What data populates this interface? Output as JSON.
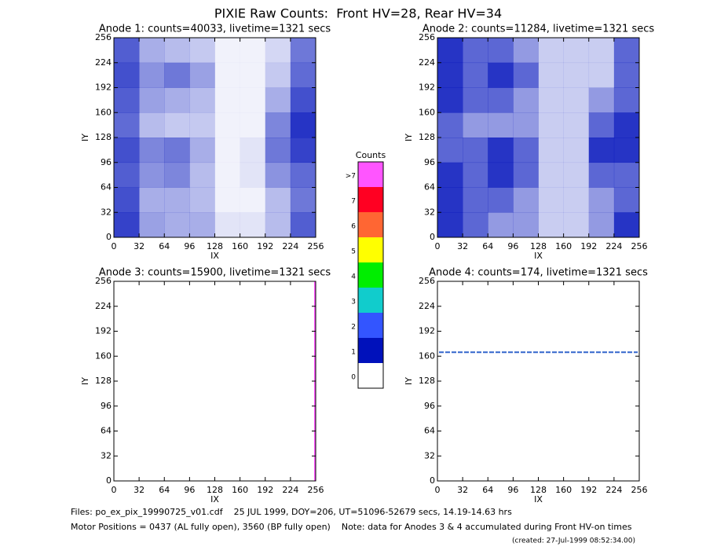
{
  "title": "PIXIE Raw Counts:  Front HV=28, Rear HV=34",
  "chart_data": [
    {
      "type": "heatmap",
      "title": "Anode 1: counts=40033, livetime=1321 secs",
      "x_label": "IX",
      "y_label": "IY",
      "xlim": [
        0,
        256
      ],
      "ylim": [
        0,
        256
      ],
      "xticks": [
        0,
        32,
        64,
        96,
        128,
        160,
        192,
        224,
        256
      ],
      "yticks": [
        0,
        32,
        64,
        96,
        128,
        160,
        192,
        224,
        256
      ],
      "color": "#0011bb",
      "values": [
        [
          1.4,
          0.7,
          0.6,
          0.6,
          0.2,
          0.2,
          0.5,
          1.2
        ],
        [
          1.3,
          0.6,
          0.6,
          0.5,
          0.1,
          0.1,
          0.5,
          1.0
        ],
        [
          1.2,
          0.8,
          0.9,
          0.5,
          0.1,
          0.2,
          0.8,
          1.1
        ],
        [
          1.3,
          0.9,
          1.0,
          0.6,
          0.1,
          0.2,
          1.0,
          1.4
        ],
        [
          1.1,
          0.5,
          0.4,
          0.4,
          0.1,
          0.1,
          0.9,
          1.5
        ],
        [
          1.2,
          0.7,
          0.6,
          0.5,
          0.1,
          0.1,
          0.6,
          1.3
        ],
        [
          1.3,
          0.8,
          1.0,
          0.7,
          0.1,
          0.1,
          0.4,
          1.1
        ],
        [
          1.2,
          0.6,
          0.5,
          0.4,
          0.1,
          0.1,
          0.3,
          1.0
        ]
      ]
    },
    {
      "type": "heatmap",
      "title": "Anode 2: counts=11284, livetime=1321 secs",
      "x_label": "IX",
      "y_label": "IY",
      "xlim": [
        0,
        256
      ],
      "ylim": [
        0,
        256
      ],
      "xticks": [
        0,
        32,
        64,
        96,
        128,
        160,
        192,
        224,
        256
      ],
      "yticks": [
        0,
        32,
        64,
        96,
        128,
        160,
        192,
        224,
        256
      ],
      "color": "#0011bb",
      "values": [
        [
          0.4,
          0.3,
          0.2,
          0.2,
          0.1,
          0.1,
          0.2,
          0.4
        ],
        [
          0.4,
          0.3,
          0.3,
          0.2,
          0.1,
          0.1,
          0.2,
          0.3
        ],
        [
          0.4,
          0.3,
          0.4,
          0.3,
          0.1,
          0.1,
          0.3,
          0.3
        ],
        [
          0.3,
          0.3,
          0.4,
          0.3,
          0.1,
          0.1,
          0.4,
          0.4
        ],
        [
          0.3,
          0.2,
          0.2,
          0.2,
          0.1,
          0.1,
          0.3,
          0.4
        ],
        [
          0.4,
          0.3,
          0.3,
          0.2,
          0.1,
          0.1,
          0.2,
          0.3
        ],
        [
          0.4,
          0.3,
          0.4,
          0.3,
          0.1,
          0.1,
          0.1,
          0.3
        ],
        [
          0.4,
          0.3,
          0.3,
          0.2,
          0.1,
          0.1,
          0.1,
          0.3
        ]
      ]
    },
    {
      "type": "heatmap",
      "title": "Anode 3: counts=15900, livetime=1321 secs",
      "x_label": "IX",
      "y_label": "IY",
      "xlim": [
        0,
        256
      ],
      "ylim": [
        0,
        256
      ],
      "xticks": [
        0,
        32,
        64,
        96,
        128,
        160,
        192,
        224,
        256
      ],
      "yticks": [
        0,
        32,
        64,
        96,
        128,
        160,
        192,
        224,
        256
      ],
      "line": {
        "axis": "x",
        "value": 255,
        "color": "#ff55ff"
      }
    },
    {
      "type": "heatmap",
      "title": "Anode 4: counts=174, livetime=1321 secs",
      "x_label": "IX",
      "y_label": "IY",
      "xlim": [
        0,
        256
      ],
      "ylim": [
        0,
        256
      ],
      "xticks": [
        0,
        32,
        64,
        96,
        128,
        160,
        192,
        224,
        256
      ],
      "yticks": [
        0,
        32,
        64,
        96,
        128,
        160,
        192,
        224,
        256
      ],
      "line": {
        "axis": "y",
        "value": 165,
        "color": "#3366cc"
      }
    }
  ],
  "colorbar": {
    "title": "Counts",
    "labels": [
      ">7",
      "7",
      "6",
      "5",
      "4",
      "3",
      "2",
      "1",
      "0"
    ],
    "colors": [
      "#ff55ff",
      "#ff0022",
      "#ff6633",
      "#ffff00",
      "#00ee00",
      "#11cccc",
      "#3355ff",
      "#0011bb",
      "#ffffff"
    ]
  },
  "footer": {
    "files": "Files: po_ex_pix_19990725_v01.cdf    25 JUL 1999, DOY=206, UT=51096-52679 secs, 14.19-14.63 hrs",
    "motor": "Motor Positions = 0437 (AL fully open), 3560 (BP fully open)    Note: data for Anodes 3 & 4 accumulated during Front HV-on times",
    "created": "(created: 27-Jul-1999 08:52:34.00)"
  }
}
